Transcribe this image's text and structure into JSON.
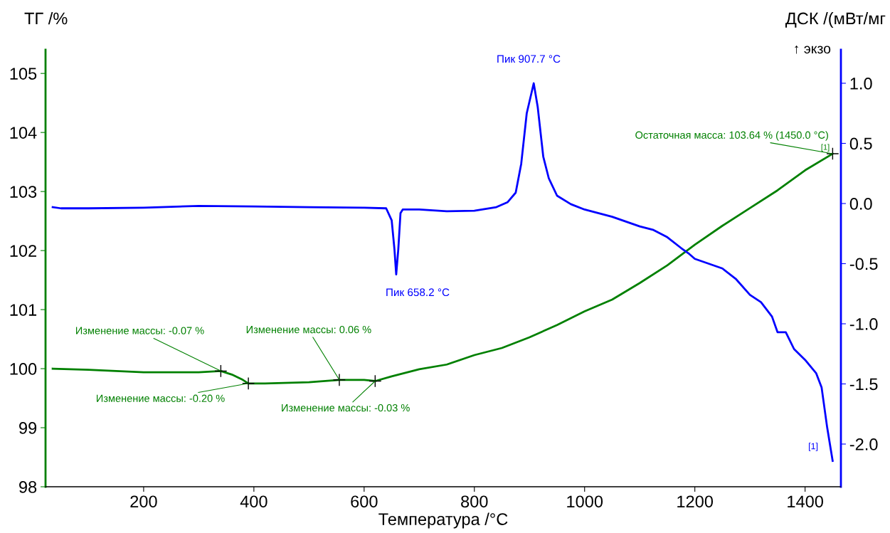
{
  "chart_data": {
    "type": "line",
    "xlabel": "Температура /°C",
    "ylabel": "ТГ /%",
    "y2label": "ДСК /(мВт/мг",
    "xlim": [
      22,
      1465
    ],
    "xticks": [
      200,
      400,
      600,
      800,
      1000,
      1200,
      1400
    ],
    "ylim": [
      98,
      105.4
    ],
    "yticks": [
      98,
      99,
      100,
      101,
      102,
      103,
      104,
      105
    ],
    "y2lim": [
      -2.355,
      1.278
    ],
    "y2ticks": [
      {
        "value": -2.0,
        "label": "-2.0"
      },
      {
        "value": -1.5,
        "label": "-1.5"
      },
      {
        "value": -1.0,
        "label": "-1.0"
      },
      {
        "value": -0.5,
        "label": "-0.5"
      },
      {
        "value": 0.0,
        "label": "0.0"
      },
      {
        "value": 0.5,
        "label": "0.5"
      },
      {
        "value": 1.0,
        "label": "1.0"
      }
    ],
    "grid": false,
    "legend": false,
    "marker": "none",
    "line_style": "solid",
    "series": [
      {
        "color": "#008000",
        "x": [
          35,
          100,
          200,
          300,
          340,
          360,
          380,
          390,
          420,
          500,
          555,
          600,
          620,
          650,
          700,
          750,
          800,
          850,
          900,
          950,
          1000,
          1050,
          1100,
          1150,
          1200,
          1250,
          1300,
          1350,
          1400,
          1450
        ],
        "values": [
          100.0,
          99.98,
          99.94,
          99.94,
          99.96,
          99.9,
          99.81,
          99.75,
          99.75,
          99.77,
          99.81,
          99.81,
          99.79,
          99.87,
          99.99,
          100.07,
          100.23,
          100.35,
          100.53,
          100.74,
          100.97,
          101.17,
          101.45,
          101.75,
          102.1,
          102.42,
          102.72,
          103.02,
          103.36,
          103.64
        ]
      },
      {
        "color": "#0000ff",
        "axis": "y2",
        "x": [
          35,
          50,
          100,
          200,
          300,
          400,
          500,
          600,
          640,
          650,
          655,
          658.2,
          662,
          666,
          670,
          700,
          750,
          800,
          840,
          860,
          875,
          885,
          895,
          907.7,
          915,
          925,
          935,
          950,
          975,
          1000,
          1050,
          1100,
          1125,
          1150,
          1175,
          1190,
          1200,
          1250,
          1275,
          1300,
          1320,
          1340,
          1350,
          1365,
          1380,
          1400,
          1420,
          1430,
          1440,
          1450
        ],
        "values": [
          -0.03,
          -0.04,
          -0.04,
          -0.035,
          -0.02,
          -0.025,
          -0.03,
          -0.035,
          -0.04,
          -0.14,
          -0.38,
          -0.59,
          -0.38,
          -0.08,
          -0.05,
          -0.05,
          -0.065,
          -0.06,
          -0.03,
          0.01,
          0.09,
          0.33,
          0.75,
          1.0,
          0.8,
          0.39,
          0.21,
          0.065,
          -0.005,
          -0.05,
          -0.11,
          -0.19,
          -0.22,
          -0.28,
          -0.37,
          -0.42,
          -0.46,
          -0.54,
          -0.63,
          -0.76,
          -0.82,
          -0.94,
          -1.07,
          -1.07,
          -1.21,
          -1.3,
          -1.41,
          -1.53,
          -1.86,
          -2.14
        ]
      }
    ],
    "annotations": [
      "Пик 907.7 °C",
      "Пик 658.2 °C",
      {
        "text": "Изменение массы: -0.07 %",
        "x": 340,
        "y": 99.96
      },
      {
        "text": "Изменение массы: -0.20 %",
        "x": 390,
        "y": 99.75
      },
      {
        "text": "Изменение массы: 0.06 %",
        "x": 555,
        "y": 99.81
      },
      {
        "text": "Изменение массы: -0.03 %",
        "x": 620,
        "y": 99.79
      },
      {
        "text": "Остаточная масса: 103.64 % (1450.0 °C)",
        "x": 1450,
        "y": 103.64
      },
      {
        "text": "[1]",
        "x": 1450,
        "y": 103.64
      },
      "[1]",
      "↑ экзо"
    ]
  }
}
